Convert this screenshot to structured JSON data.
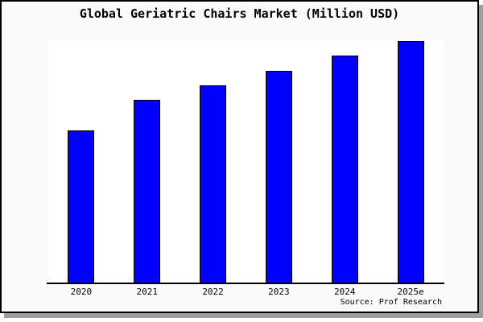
{
  "title": "Global Geriatric Chairs Market (Million USD)",
  "source": "Source: Prof Research",
  "colors": {
    "bar_fill": "#0000ff",
    "bar_border": "#000000",
    "plot_background": "#ffffff",
    "page_background": "#fafafa",
    "frame_border": "#000000",
    "frame_shadow": "#9e9e9e",
    "axis_line": "#000000",
    "text": "#000000"
  },
  "chart_data": {
    "type": "bar",
    "title": "Global Geriatric Chairs Market (Million USD)",
    "categories": [
      "2020",
      "2021",
      "2022",
      "2023",
      "2024",
      "2025e"
    ],
    "values": [
      62.5,
      75,
      81,
      87,
      93.5,
      99.5
    ],
    "xlabel": "",
    "ylabel": "",
    "ylim": [
      0,
      100
    ],
    "grid": false,
    "legend_position": "none",
    "y_axis_labels_visible": false,
    "value_note": "y-axis has no visible scale; values estimated as percent of plot height",
    "source": "Source: Prof Research"
  }
}
